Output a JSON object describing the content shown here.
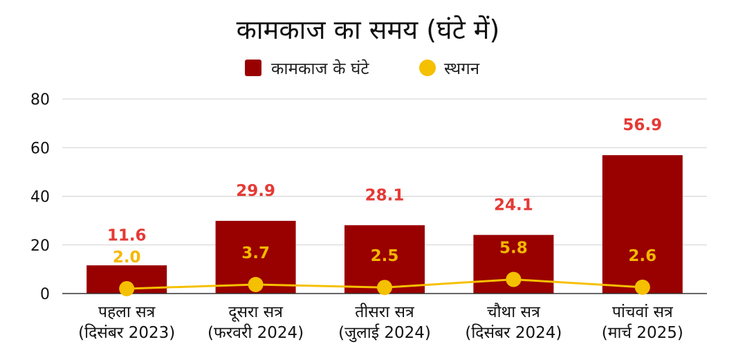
{
  "chart_data": {
    "type": "bar",
    "title": "कामकाज का समय (घंटे में)",
    "categories": [
      [
        "पहला सत्र",
        "(दिसंबर 2023)"
      ],
      [
        "दूसरा सत्र",
        "(फरवरी 2024)"
      ],
      [
        "तीसरा सत्र",
        "(जुलाई 2024)"
      ],
      [
        "चौथा सत्र",
        "(दिसंबर 2024)"
      ],
      [
        "पांचवां सत्र",
        "(मार्च 2025)"
      ]
    ],
    "series": [
      {
        "name": "कामकाज के घंटे",
        "type": "bar",
        "color": "#990000",
        "label_color": "#e53935",
        "values": [
          11.6,
          29.9,
          28.1,
          24.1,
          56.9
        ],
        "labels": [
          "11.6",
          "29.9",
          "28.1",
          "24.1",
          "56.9"
        ]
      },
      {
        "name": "स्थगन",
        "type": "line",
        "color": "#f5c000",
        "label_color": "#f5b800",
        "values": [
          2.0,
          3.7,
          2.5,
          5.8,
          2.6
        ],
        "labels": [
          "2.0",
          "3.7",
          "2.5",
          "5.8",
          "2.6"
        ]
      }
    ],
    "ylim": [
      0,
      80
    ],
    "yticks": [
      0,
      20,
      40,
      60,
      80
    ],
    "grid": true,
    "legend_position": "top-center"
  }
}
